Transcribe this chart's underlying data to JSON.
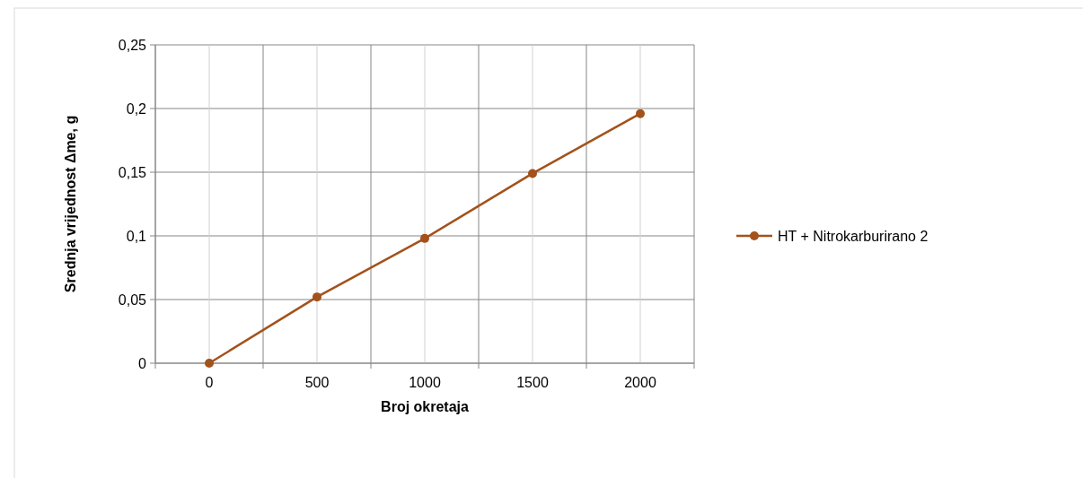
{
  "chart_data": {
    "type": "line",
    "xlabel": "Broj okretaja",
    "ylabel": "Srednja vrijednost Δme, g",
    "categories": [
      "0",
      "500",
      "1000",
      "1500",
      "2000"
    ],
    "series": [
      {
        "name": "HT + Nitrokarburirano 2",
        "color": "#a3521b",
        "values": [
          0,
          0.052,
          0.098,
          0.149,
          0.196
        ]
      }
    ],
    "ylim": [
      0,
      0.25
    ],
    "yticks": [
      0,
      {
        "value": 0.05,
        "label": "0,05"
      },
      {
        "value": 0.1,
        "label": "0,1"
      },
      {
        "value": 0.15,
        "label": "0,15"
      },
      {
        "value": 0.2,
        "label": "0,2"
      },
      {
        "value": 0.25,
        "label": "0,25"
      }
    ],
    "grid": true,
    "legend": "right",
    "marker": "circle",
    "line_style": "solid"
  }
}
